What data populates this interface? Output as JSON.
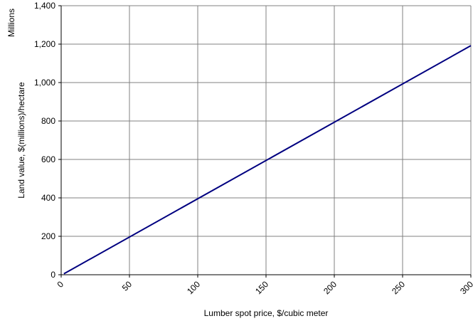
{
  "chart_data": {
    "type": "line",
    "xlabel": "Lumber spot price, $/cubic meter",
    "ylabel": "Land value, $(millions)/hectare",
    "yunit_label": "Millions",
    "x": [
      2,
      300
    ],
    "series": [
      {
        "name": "Land value",
        "color": "#000080",
        "values": [
          5,
          1192
        ]
      }
    ],
    "xlim": [
      0,
      300
    ],
    "xticks": [
      0,
      50,
      100,
      150,
      200,
      250,
      300
    ],
    "ylim": [
      0,
      1400
    ],
    "yticks": [
      0,
      200,
      400,
      600,
      800,
      {
        "value": 1000,
        "label": "1,000"
      },
      {
        "value": 1200,
        "label": "1,200"
      },
      {
        "value": 1400,
        "label": "1,400"
      }
    ],
    "grid": true
  }
}
